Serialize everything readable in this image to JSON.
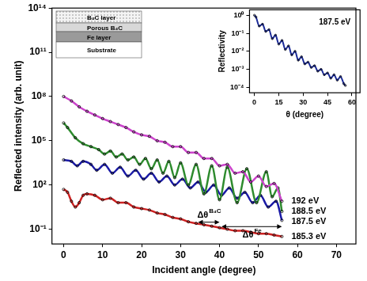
{
  "chart_data": [
    {
      "type": "line",
      "x_label": "Incident angle (degree)",
      "y_label": "Reflected intensity (arb. unit)",
      "log": "y",
      "grid": false,
      "marker": "circle",
      "xlim": [
        -3,
        75
      ],
      "xticks": [
        0,
        10,
        20,
        30,
        40,
        50,
        60,
        70
      ],
      "ylim": [
        0.01,
        100000000000000.0
      ],
      "yticks": [
        {
          "value": 0.1,
          "label": "10⁻¹"
        },
        {
          "value": 100,
          "label": "10²"
        },
        {
          "value": 100000,
          "label": "10⁵"
        },
        {
          "value": 100000000,
          "label": "10⁸"
        },
        {
          "value": 100000000000.0,
          "label": "10¹¹"
        },
        {
          "value": 100000000000000.0,
          "label": "10¹⁴"
        }
      ],
      "series": [
        {
          "name": "192 eV",
          "color": "#cc44cc",
          "x": [
            0,
            2,
            4,
            6,
            8,
            10,
            12,
            14,
            16,
            18,
            20,
            22,
            24,
            26,
            28,
            30,
            32,
            34,
            36,
            38,
            40,
            42,
            44,
            46,
            48,
            50,
            52,
            54,
            56
          ],
          "values": [
            100000000.0,
            50000000.0,
            20000000.0,
            10000000.0,
            5600000.0,
            3200000.0,
            2000000.0,
            1260000.0,
            790000.0,
            400000.0,
            250000.0,
            200000.0,
            100000.0,
            79000.0,
            40000.0,
            40000.0,
            16000.0,
            16000.0,
            6300,
            6300,
            2000,
            2500,
            630,
            790,
            160,
            400,
            79,
            126,
            7.9
          ]
        },
        {
          "name": "188.5 eV",
          "color": "#2e8b2e",
          "x": [
            0,
            1,
            3,
            5,
            7,
            9,
            10.5,
            12,
            13.5,
            15,
            16.5,
            18,
            19.5,
            21,
            22.5,
            24,
            25.5,
            27,
            28.5,
            30,
            32,
            34,
            36,
            38,
            40,
            42,
            44.5,
            47,
            49.5,
            52,
            53.5,
            55,
            56
          ],
          "values": [
            1600000.0,
            790000.0,
            160000.0,
            63000.0,
            40000.0,
            25000.0,
            12600,
            20000,
            7900,
            12600,
            5000,
            7900,
            2500,
            6300,
            1260,
            5000,
            630,
            4000,
            316,
            3160,
            100,
            2500,
            25,
            2000,
            10,
            1600,
            6.3,
            1260,
            6.3,
            790,
            16,
            63,
            1.6
          ]
        },
        {
          "name": "187.5 eV",
          "color": "#1a1aa6",
          "x": [
            0,
            2,
            3.5,
            5,
            7,
            8.5,
            10.5,
            12.5,
            14.5,
            16.5,
            18.5,
            20.5,
            22.5,
            24.5,
            26.5,
            28.5,
            30.5,
            32.5,
            34.5,
            36.5,
            38.5,
            40.5,
            42.5,
            44.5,
            46.5,
            48.5,
            50.5,
            52.5,
            54.5,
            56
          ],
          "values": [
            5000,
            4000,
            2000,
            4000,
            2500,
            1000,
            2500,
            630,
            1600,
            400,
            1000,
            250,
            630,
            160,
            400,
            100,
            250,
            63,
            160,
            32,
            100,
            20,
            63,
            12.6,
            32,
            6.3,
            20,
            3.2,
            7.9,
            0.4
          ]
        },
        {
          "name": "185.3 eV",
          "color": "#cc2222",
          "x": [
            0,
            1,
            2,
            3,
            4,
            5,
            6,
            8,
            10,
            12,
            14,
            16,
            18,
            20,
            22,
            24,
            26,
            28,
            30,
            32,
            34,
            36,
            38,
            40,
            42,
            44,
            46,
            48,
            50,
            52,
            54,
            56
          ],
          "values": [
            50,
            32,
            7.9,
            3.2,
            6.3,
            20,
            25,
            20,
            10,
            12.6,
            6.3,
            6.3,
            3.2,
            2.5,
            2.0,
            1.26,
            1,
            0.63,
            0.5,
            0.32,
            0.25,
            0.2,
            0.16,
            0.126,
            0.1,
            0.079,
            0.079,
            0.063,
            0.05,
            0.05,
            0.04,
            0.032
          ]
        }
      ],
      "annotations": [
        {
          "text": "Δθ",
          "superscript": "B₄C",
          "x": [
            34.5,
            40
          ],
          "y": 0.3
        },
        {
          "text": "Δθ",
          "superscript": "Fe",
          "x": [
            40.5,
            56
          ],
          "y": 0.15
        }
      ]
    },
    {
      "type": "line",
      "x_label": "θ (degree)",
      "y_label": "Reflectivity",
      "log": "y",
      "grid": false,
      "marker": "circle",
      "xlim": [
        -3,
        65
      ],
      "xticks": [
        0,
        15,
        30,
        45,
        60
      ],
      "ylim": [
        5e-05,
        2
      ],
      "yticks": [
        {
          "value": 0.0001,
          "label": "10⁻⁴"
        },
        {
          "value": 0.001,
          "label": "10⁻³"
        },
        {
          "value": 0.01,
          "label": "10⁻²"
        },
        {
          "value": 0.1,
          "label": "10⁻¹"
        },
        {
          "value": 1,
          "label": "10⁰"
        }
      ],
      "series": [
        {
          "name": "187.5 eV",
          "color": "#1a2a99",
          "x": [
            0,
            1,
            3,
            5,
            7,
            9,
            11,
            13,
            15,
            17,
            19,
            21,
            23,
            25,
            27,
            29,
            31,
            33,
            35,
            37,
            39,
            41,
            43,
            45,
            47,
            49,
            51,
            53,
            55,
            56
          ],
          "values": [
            1,
            0.79,
            0.25,
            0.32,
            0.126,
            0.16,
            0.05,
            0.079,
            0.025,
            0.04,
            0.0126,
            0.02,
            0.0063,
            0.01,
            0.0032,
            0.005,
            0.002,
            0.0025,
            0.00126,
            0.0016,
            0.00079,
            0.001,
            0.0005,
            0.00063,
            0.00032,
            0.0005,
            0.00025,
            0.0004,
            0.00016,
            0.000126
          ]
        }
      ]
    }
  ],
  "schematic": {
    "layers": [
      "B₄C layer",
      "Porous B₄C",
      "Fe layer",
      "Substrate"
    ]
  }
}
